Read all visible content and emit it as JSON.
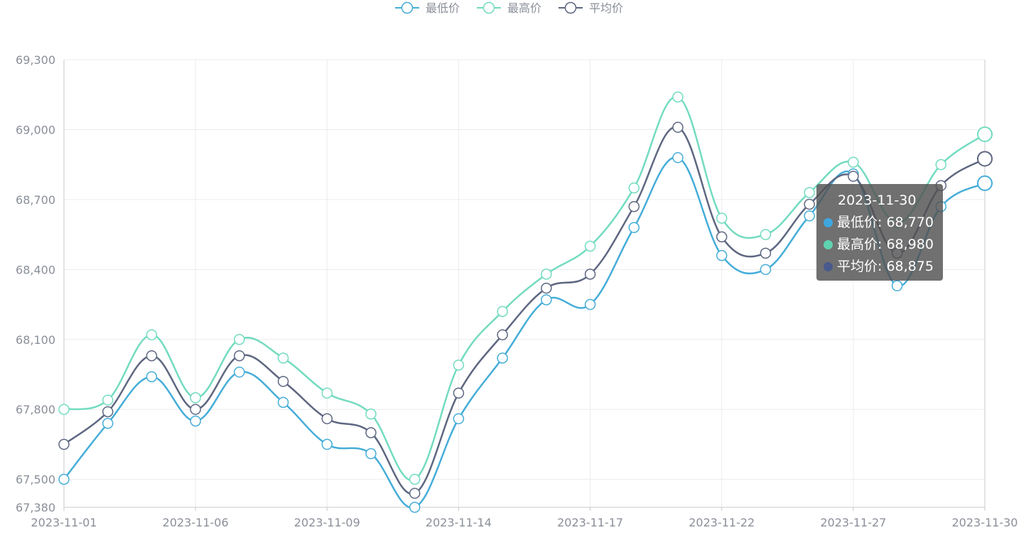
{
  "chart_data": {
    "type": "line",
    "smooth": true,
    "x": [
      "2023-11-01",
      "2023-11-02",
      "2023-11-03",
      "2023-11-06",
      "2023-11-07",
      "2023-11-08",
      "2023-11-09",
      "2023-11-10",
      "2023-11-13",
      "2023-11-14",
      "2023-11-15",
      "2023-11-16",
      "2023-11-17",
      "2023-11-20",
      "2023-11-21",
      "2023-11-22",
      "2023-11-23",
      "2023-11-24",
      "2023-11-27",
      "2023-11-28",
      "2023-11-29",
      "2023-11-30"
    ],
    "x_tick_labels": [
      "2023-11-01",
      "2023-11-06",
      "2023-11-09",
      "2023-11-14",
      "2023-11-17",
      "2023-11-22",
      "2023-11-27",
      "2023-11-30"
    ],
    "x_tick_every": 3,
    "y_ticks": [
      "67,380",
      "67,500",
      "67,800",
      "68,100",
      "68,400",
      "68,700",
      "69,000",
      "69,300"
    ],
    "ylim": [
      67380,
      69300
    ],
    "grid": true,
    "legend_position": "top-center",
    "series": [
      {
        "name": "最低价",
        "color": "#45add8",
        "values": [
          67500,
          67740,
          67940,
          67750,
          67960,
          67830,
          67650,
          67610,
          67380,
          67760,
          68020,
          68270,
          68250,
          68580,
          68880,
          68460,
          68400,
          68630,
          68810,
          68330,
          68670,
          68770
        ]
      },
      {
        "name": "最高价",
        "color": "#73dbc0",
        "values": [
          67800,
          67840,
          68120,
          67850,
          68100,
          68020,
          67870,
          67780,
          67500,
          67990,
          68220,
          68380,
          68500,
          68750,
          69140,
          68620,
          68550,
          68730,
          68860,
          68600,
          68850,
          68980
        ]
      },
      {
        "name": "平均价",
        "color": "#5e6781",
        "values": [
          67650,
          67790,
          68030,
          67800,
          68030,
          67920,
          67760,
          67700,
          67440,
          67870,
          68120,
          68320,
          68380,
          68670,
          69010,
          68540,
          68470,
          68680,
          68800,
          68470,
          68760,
          68875
        ]
      }
    ]
  },
  "tooltip": {
    "title": "2023-11-30",
    "rows": [
      {
        "label": "最低价",
        "value": "68,770",
        "color": "#3fa7e0"
      },
      {
        "label": "最高价",
        "value": "68,980",
        "color": "#5fd3b0"
      },
      {
        "label": "平均价",
        "value": "68,875",
        "color": "#4a5a8c"
      }
    ]
  }
}
